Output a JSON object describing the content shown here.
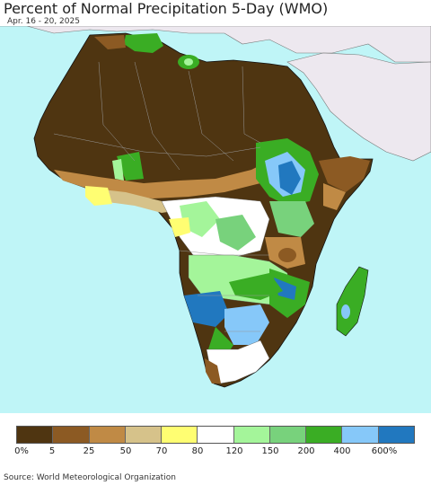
{
  "title": "Percent of Normal Precipitation 5-Day (WMO)",
  "subtitle": "Apr. 16 - 20, 2025",
  "source": "Source: World Meteorological Organization",
  "legend": {
    "colors": [
      "#4f3511",
      "#8c5a23",
      "#c08a45",
      "#d6c28a",
      "#fffe72",
      "#ffffff",
      "#a4f59a",
      "#78d27c",
      "#3aad24",
      "#86c8f9",
      "#2178bf"
    ],
    "labels": [
      "0%",
      "5",
      "25",
      "50",
      "70",
      "80",
      "120",
      "150",
      "200",
      "400",
      "600%"
    ]
  },
  "map": {
    "ocean_color": "#bff5f7",
    "non_africa_land_color": "#ede8ef",
    "region_colors": {
      "dry": "#4f3511",
      "very_low": "#8c5a23",
      "low": "#c08a45",
      "below": "#d6c28a",
      "slightly_below": "#fffe72",
      "normal": "#ffffff",
      "above": "#a4f59a",
      "well_above": "#78d27c",
      "much_above": "#3aad24",
      "very_wet": "#86c8f9",
      "extreme_wet": "#2178bf"
    }
  }
}
